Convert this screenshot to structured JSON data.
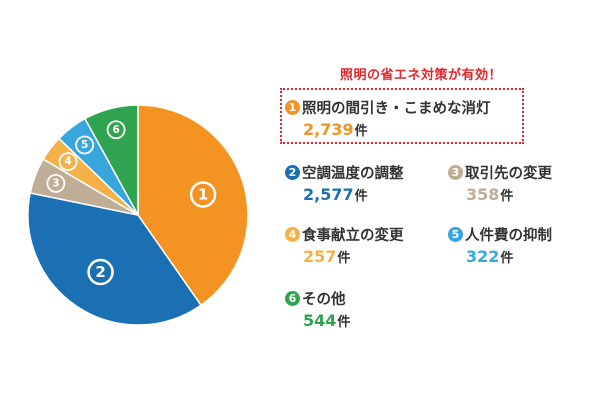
{
  "headline": "照明の省エネ対策が有効！",
  "unit": "件",
  "chart_data": {
    "type": "pie",
    "categories": [
      "照明の間引き・こまめな消灯",
      "空調温度の調整",
      "取引先の変更",
      "食事献立の変更",
      "人件費の抑制",
      "その他"
    ],
    "values": [
      2739,
      2577,
      358,
      257,
      322,
      544
    ],
    "value_labels": [
      "2,739",
      "2,577",
      "358",
      "257",
      "322",
      "544"
    ],
    "slice_order": [
      0,
      1,
      2,
      3,
      4,
      5
    ],
    "badges": [
      "1",
      "2",
      "3",
      "4",
      "5",
      "6"
    ],
    "colors": [
      "#f39322",
      "#1b6fb3",
      "#bfad98",
      "#f4b147",
      "#36a6dc",
      "#2fa34f"
    ],
    "highlighted": 0
  }
}
